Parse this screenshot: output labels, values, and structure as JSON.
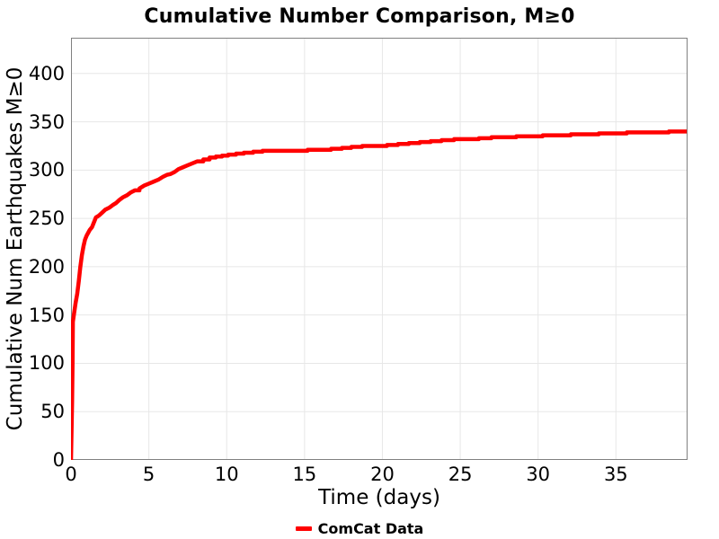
{
  "colors": {
    "line": "#FF0000",
    "grid": "#E7E7E7",
    "frame": "#808080",
    "text": "#000000",
    "background": "#FFFFFF"
  },
  "chart_data": {
    "type": "line",
    "title": "Cumulative Number Comparison, M≥0",
    "xlabel": "Time (days)",
    "ylabel": "Cumulative Num Earthquakes M≥0",
    "xlim": [
      0,
      39.6
    ],
    "ylim": [
      0,
      437
    ],
    "xticks": [
      0,
      5,
      10,
      15,
      20,
      25,
      30,
      35
    ],
    "yticks": [
      0,
      50,
      100,
      150,
      200,
      250,
      300,
      350,
      400
    ],
    "grid": true,
    "legend_position": "bottom-center",
    "series": [
      {
        "name": "ComCat Data",
        "color": "#FF0000",
        "x": [
          0,
          0.07,
          0.1,
          0.12,
          0.2,
          0.3,
          0.4,
          0.5,
          0.6,
          0.7,
          0.8,
          0.9,
          1.0,
          1.1,
          1.2,
          1.35,
          1.5,
          1.6,
          1.8,
          2.0,
          2.2,
          2.45,
          2.7,
          2.9,
          3.1,
          3.35,
          3.6,
          3.85,
          4.1,
          4.4,
          4.7,
          5.0,
          5.3,
          5.6,
          5.9,
          6.15,
          6.4,
          6.65,
          6.9,
          7.2,
          7.5,
          7.8,
          8.1,
          8.5,
          8.9,
          9.3,
          9.7,
          10.1,
          10.6,
          11.1,
          11.7,
          12.3,
          13.0,
          13.7,
          14.5,
          15.2,
          16.0,
          16.7,
          17.4,
          18.0,
          18.7,
          19.5,
          20.3,
          21.0,
          21.7,
          22.4,
          23.1,
          23.8,
          24.6,
          25.4,
          26.2,
          27.0,
          27.8,
          28.6,
          29.5,
          30.3,
          31.2,
          32.1,
          33.0,
          33.9,
          34.8,
          35.7,
          36.6,
          37.5,
          38.4,
          39.3,
          39.55
        ],
        "y": [
          0,
          60,
          100,
          143,
          152,
          163,
          172,
          185,
          200,
          212,
          221,
          228,
          232,
          235,
          238,
          241,
          247,
          251,
          253,
          256,
          259,
          261,
          264,
          266,
          269,
          272,
          274,
          277,
          279,
          281,
          284,
          286,
          288,
          290,
          293,
          295,
          296,
          298,
          301,
          303,
          305,
          307,
          309,
          311,
          313,
          314,
          315,
          316,
          317,
          318,
          319,
          320,
          320,
          320,
          320,
          321,
          321,
          322,
          323,
          324,
          325,
          325,
          326,
          327,
          328,
          329,
          330,
          331,
          332,
          332,
          333,
          334,
          334,
          335,
          335,
          336,
          336,
          337,
          337,
          338,
          338,
          339,
          339,
          339,
          340,
          340,
          340
        ]
      }
    ]
  }
}
